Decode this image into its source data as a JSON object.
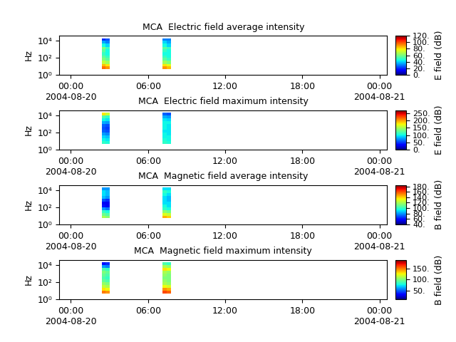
{
  "chart_data": [
    {
      "type": "heatmap",
      "title": "MCA  Electric field average intensity",
      "y_label": "Hz",
      "log": "y",
      "xlim": [
        -0.9,
        24.6
      ],
      "ylim": [
        1,
        40000
      ],
      "xticks": [
        {
          "value": 0,
          "label": "00:00\n2004-08-20"
        },
        {
          "value": 6,
          "label": "06:00"
        },
        {
          "value": 12,
          "label": "12:00"
        },
        {
          "value": 18,
          "label": "18:00"
        },
        {
          "value": 24,
          "label": "00:00\n2004-08-21"
        }
      ],
      "yticks": [
        {
          "value": 1,
          "label": "10⁰"
        },
        {
          "value": 100,
          "label": "10²"
        },
        {
          "value": 10000,
          "label": "10⁴"
        }
      ],
      "freq_bins": [
        5,
        10,
        20,
        50,
        100,
        200,
        500,
        1000,
        2000,
        5000,
        10000,
        20000
      ],
      "blocks": [
        {
          "time_bins": [
            2.4,
            2.7,
            3.05
          ],
          "cells": [
            [
              95,
              90
            ],
            [
              85,
              80
            ],
            [
              70,
              65
            ],
            [
              60,
              55
            ],
            [
              55,
              50
            ],
            [
              50,
              45
            ],
            [
              55,
              45
            ],
            [
              60,
              50
            ],
            [
              45,
              40
            ],
            [
              35,
              30
            ],
            [
              20,
              25
            ]
          ]
        },
        {
          "time_bins": [
            7.15,
            7.45,
            7.8
          ],
          "cells": [
            [
              90,
              85
            ],
            [
              80,
              75
            ],
            [
              65,
              60
            ],
            [
              55,
              50
            ],
            [
              50,
              45
            ],
            [
              45,
              45
            ],
            [
              50,
              45
            ],
            [
              55,
              50
            ],
            [
              45,
              40
            ],
            [
              40,
              35
            ],
            [
              30,
              30
            ]
          ]
        }
      ],
      "colorbar": {
        "label": "E field (dB)",
        "range": [
          0,
          120
        ],
        "ticks": [
          {
            "value": 0,
            "label": "0."
          },
          {
            "value": 20,
            "label": "20."
          },
          {
            "value": 40,
            "label": "40."
          },
          {
            "value": 60,
            "label": "60."
          },
          {
            "value": 80,
            "label": "80."
          },
          {
            "value": 100,
            "label": "100."
          },
          {
            "value": 120,
            "label": "120."
          }
        ]
      }
    },
    {
      "type": "heatmap",
      "title": "MCA  Electric field maximum intensity",
      "y_label": "Hz",
      "log": "y",
      "xlim": [
        -0.9,
        24.6
      ],
      "ylim": [
        1,
        40000
      ],
      "xticks": [
        {
          "value": 0,
          "label": "00:00\n2004-08-20"
        },
        {
          "value": 6,
          "label": "06:00"
        },
        {
          "value": 12,
          "label": "12:00"
        },
        {
          "value": 18,
          "label": "18:00"
        },
        {
          "value": 24,
          "label": "00:00\n2004-08-21"
        }
      ],
      "yticks": [
        {
          "value": 1,
          "label": "10⁰"
        },
        {
          "value": 100,
          "label": "10²"
        },
        {
          "value": 10000,
          "label": "10⁴"
        }
      ],
      "freq_bins": [
        5,
        10,
        20,
        50,
        100,
        200,
        500,
        1000,
        2000,
        5000,
        10000,
        20000
      ],
      "blocks": [
        {
          "time_bins": [
            2.4,
            2.7,
            3.05
          ],
          "cells": [
            [
              110,
              105
            ],
            [
              100,
              95
            ],
            [
              90,
              85
            ],
            [
              75,
              70
            ],
            [
              60,
              55
            ],
            [
              55,
              50
            ],
            [
              60,
              55
            ],
            [
              80,
              75
            ],
            [
              100,
              95
            ],
            [
              120,
              110
            ],
            [
              180,
              160
            ]
          ]
        },
        {
          "time_bins": [
            7.15,
            7.45,
            7.8
          ],
          "cells": [
            [
              110,
              105
            ],
            [
              105,
              100
            ],
            [
              100,
              100
            ],
            [
              100,
              95
            ],
            [
              95,
              95
            ],
            [
              100,
              95
            ],
            [
              100,
              95
            ],
            [
              100,
              100
            ],
            [
              95,
              90
            ],
            [
              80,
              75
            ],
            [
              60,
              55
            ]
          ]
        }
      ],
      "colorbar": {
        "label": "E field (dB)",
        "range": [
          0,
          270
        ],
        "ticks": [
          {
            "value": 0,
            "label": "0."
          },
          {
            "value": 50,
            "label": "50."
          },
          {
            "value": 100,
            "label": "100."
          },
          {
            "value": 150,
            "label": "150."
          },
          {
            "value": 200,
            "label": "200."
          },
          {
            "value": 250,
            "label": "250."
          }
        ]
      }
    },
    {
      "type": "heatmap",
      "title": "MCA  Magnetic field average intensity",
      "y_label": "Hz",
      "log": "y",
      "xlim": [
        -0.9,
        24.6
      ],
      "ylim": [
        1,
        40000
      ],
      "xticks": [
        {
          "value": 0,
          "label": "00:00\n2004-08-20"
        },
        {
          "value": 6,
          "label": "06:00"
        },
        {
          "value": 12,
          "label": "12:00"
        },
        {
          "value": 18,
          "label": "18:00"
        },
        {
          "value": 24,
          "label": "00:00\n2004-08-21"
        }
      ],
      "yticks": [
        {
          "value": 1,
          "label": "10⁰"
        },
        {
          "value": 100,
          "label": "10²"
        },
        {
          "value": 10000,
          "label": "10⁴"
        }
      ],
      "freq_bins": [
        5,
        10,
        20,
        50,
        100,
        200,
        500,
        1000,
        2000,
        5000,
        10000,
        20000
      ],
      "blocks": [
        {
          "time_bins": [
            2.4,
            2.7,
            3.05
          ],
          "cells": [
            [
              120,
              115
            ],
            [
              110,
              105
            ],
            [
              100,
              95
            ],
            [
              80,
              75
            ],
            [
              60,
              55
            ],
            [
              55,
              55
            ],
            [
              70,
              65
            ],
            [
              85,
              80
            ],
            [
              90,
              85
            ],
            [
              90,
              85
            ],
            [
              80,
              80
            ]
          ]
        },
        {
          "time_bins": [
            7.15,
            7.45,
            7.8
          ],
          "cells": [
            [
              145,
              140
            ],
            [
              130,
              125
            ],
            [
              115,
              110
            ],
            [
              100,
              95
            ],
            [
              95,
              90
            ],
            [
              90,
              90
            ],
            [
              90,
              85
            ],
            [
              90,
              85
            ],
            [
              95,
              90
            ],
            [
              100,
              95
            ],
            [
              90,
              90
            ]
          ]
        }
      ],
      "colorbar": {
        "label": "B field (dB)",
        "range": [
          40,
          185
        ],
        "ticks": [
          {
            "value": 40,
            "label": "40."
          },
          {
            "value": 60,
            "label": "60."
          },
          {
            "value": 80,
            "label": "80."
          },
          {
            "value": 100,
            "label": "100."
          },
          {
            "value": 120,
            "label": "120."
          },
          {
            "value": 140,
            "label": "140."
          },
          {
            "value": 160,
            "label": "160."
          },
          {
            "value": 180,
            "label": "180."
          }
        ]
      }
    },
    {
      "type": "heatmap",
      "title": "MCA  Magnetic field maximum intensity",
      "y_label": "Hz",
      "log": "y",
      "xlim": [
        -0.9,
        24.6
      ],
      "ylim": [
        1,
        40000
      ],
      "xticks": [
        {
          "value": 0,
          "label": "00:00\n2004-08-20"
        },
        {
          "value": 6,
          "label": "06:00"
        },
        {
          "value": 12,
          "label": "12:00"
        },
        {
          "value": 18,
          "label": "18:00"
        },
        {
          "value": 24,
          "label": "00:00\n2004-08-21"
        }
      ],
      "yticks": [
        {
          "value": 1,
          "label": "10⁰"
        },
        {
          "value": 100,
          "label": "10²"
        },
        {
          "value": 10000,
          "label": "10⁴"
        }
      ],
      "freq_bins": [
        5,
        10,
        20,
        50,
        100,
        200,
        500,
        1000,
        2000,
        5000,
        10000,
        20000
      ],
      "blocks": [
        {
          "time_bins": [
            2.4,
            2.7,
            3.05
          ],
          "cells": [
            [
              150,
              145
            ],
            [
              130,
              125
            ],
            [
              115,
              110
            ],
            [
              105,
              100
            ],
            [
              95,
              90
            ],
            [
              90,
              85
            ],
            [
              95,
              90
            ],
            [
              100,
              95
            ],
            [
              90,
              85
            ],
            [
              60,
              55
            ],
            [
              35,
              40
            ]
          ]
        },
        {
          "time_bins": [
            7.15,
            7.45,
            7.8
          ],
          "cells": [
            [
              160,
              155
            ],
            [
              145,
              140
            ],
            [
              125,
              120
            ],
            [
              110,
              105
            ],
            [
              105,
              100
            ],
            [
              100,
              100
            ],
            [
              105,
              100
            ],
            [
              110,
              105
            ],
            [
              130,
              125
            ],
            [
              110,
              105
            ],
            [
              90,
              85
            ]
          ]
        }
      ],
      "colorbar": {
        "label": "B field (dB)",
        "range": [
          10,
          190
        ],
        "ticks": [
          {
            "value": 50,
            "label": "50."
          },
          {
            "value": 100,
            "label": "100."
          },
          {
            "value": 150,
            "label": "150."
          }
        ]
      }
    }
  ]
}
